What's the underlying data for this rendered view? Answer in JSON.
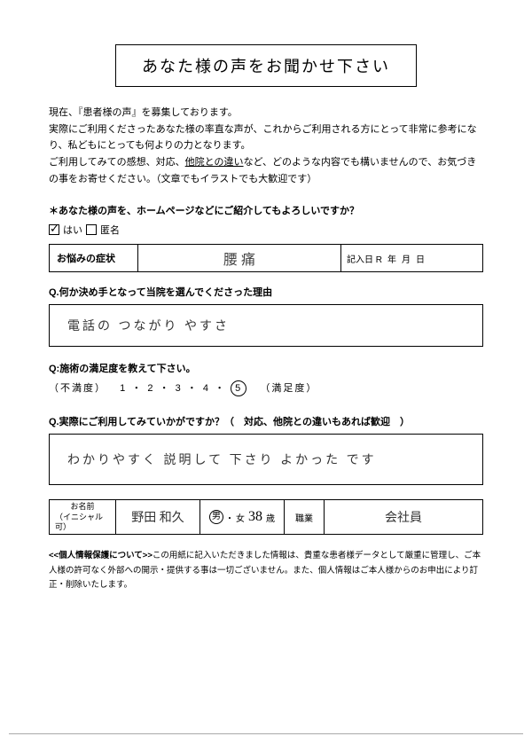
{
  "title": "あなた様の声をお聞かせ下さい",
  "intro": {
    "l1": "現在、『患者様の声』を募集しております。",
    "l2a": "実際にご利用くださったあなた様の率直な声が、これからご利用される方にとって非常に参考になり、私どもにとっても何よりの力となります。",
    "l3a": "ご利用してみての感想、対応、",
    "l3u": "他院との違い",
    "l3b": "など、どのような内容でも構いませんので、お気づきの事をお寄せください。（文章でもイラストでも大歓迎です）"
  },
  "consent": {
    "q": "＊あなた様の声を、ホームページなどにご紹介してもよろしいですか？",
    "opt1": "はい",
    "opt2": "匿名"
  },
  "symptom": {
    "label": "お悩みの症状",
    "value": "腰 痛",
    "date_prefix": "記入日 R",
    "y": "年",
    "m": "月",
    "d": "日"
  },
  "q1": {
    "label": "Q.何か決め手となって当院を選んでくださった理由",
    "answer": "電話の つながり やすさ"
  },
  "q2": {
    "label": "Q:施術の満足度を教えて下さい。",
    "left": "（不満度）",
    "right": "（満足度）",
    "n1": "1",
    "n2": "2",
    "n3": "3",
    "n4": "4",
    "n5": "5",
    "selected": 5
  },
  "q3": {
    "label": "Q.実際にご利用してみていかがですか？（　対応、他院との違いもあれば歓迎　）",
    "answer": "わかりやすく 説明して 下さり よかった です"
  },
  "name": {
    "label1": "お名前",
    "label2": "（イニシャル可）",
    "value": "野田 和久",
    "gender_m": "男",
    "gender_f": "女",
    "dot": "・",
    "age": "38",
    "age_suf": "歳",
    "occ_label": "職業",
    "occ_value": "会社員"
  },
  "privacy": {
    "h": "<<個人情報保護について>>",
    "t": "この用紙に記入いただきました情報は、貴重な患者様データとして厳重に管理し、ご本人様の許可なく外部への開示・提供する事は一切ございません。また、個人情報はご本人様からのお申出により訂正・削除いたします。"
  }
}
